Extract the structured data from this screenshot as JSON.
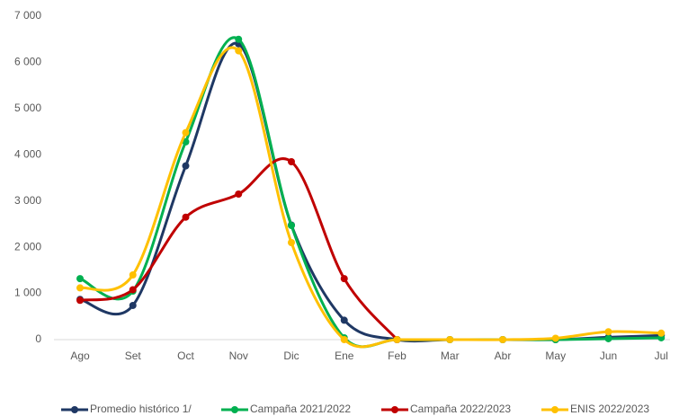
{
  "chart_data": {
    "type": "line",
    "smooth": true,
    "grid": false,
    "categories": [
      "Ago",
      "Set",
      "Oct",
      "Nov",
      "Dic",
      "Ene",
      "Feb",
      "Mar",
      "Abr",
      "May",
      "Jun",
      "Jul"
    ],
    "ylim": [
      0,
      7000
    ],
    "yticks": [
      {
        "value": 0,
        "label": "0"
      },
      {
        "value": 1000,
        "label": "1 000"
      },
      {
        "value": 2000,
        "label": "2 000"
      },
      {
        "value": 3000,
        "label": "3 000"
      },
      {
        "value": 4000,
        "label": "4 000"
      },
      {
        "value": 5000,
        "label": "5 000"
      },
      {
        "value": 6000,
        "label": "6 000"
      },
      {
        "value": 7000,
        "label": "7 000"
      }
    ],
    "series": [
      {
        "name": "Promedio histórico 1/",
        "color": "#1f3864",
        "values": [
          870,
          740,
          3760,
          6400,
          2480,
          420,
          0,
          0,
          0,
          0,
          50,
          90
        ]
      },
      {
        "name": "Campaña 2021/2022",
        "color": "#00b050",
        "values": [
          1320,
          1050,
          4280,
          6500,
          2470,
          40,
          0,
          0,
          0,
          0,
          20,
          40
        ]
      },
      {
        "name": "Campaña 2022/2023",
        "color": "#c00000",
        "values": [
          850,
          1080,
          2650,
          3150,
          3850,
          1320,
          0,
          null,
          null,
          null,
          null,
          null
        ]
      },
      {
        "name": "ENIS  2022/2023",
        "color": "#ffc000",
        "values": [
          1120,
          1400,
          4480,
          6250,
          2100,
          0,
          0,
          0,
          0,
          30,
          170,
          140
        ]
      }
    ]
  }
}
